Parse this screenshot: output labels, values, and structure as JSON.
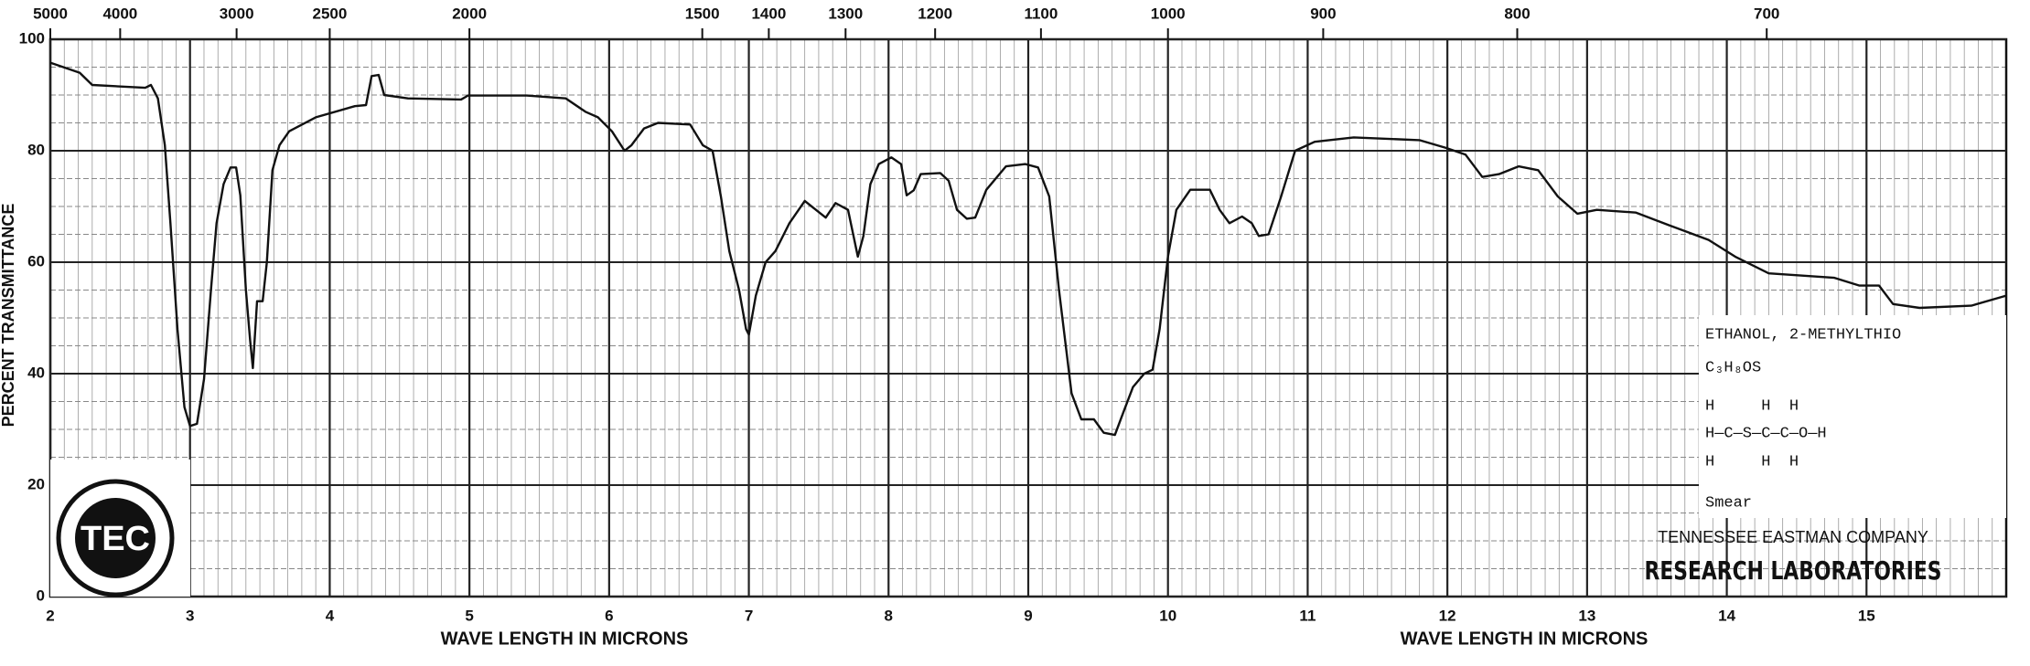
{
  "chart_data": {
    "type": "line",
    "ylabel": "PERCENT TRANSMITTANCE",
    "xlabel": "WAVE LENGTH IN MICRONS",
    "xlim": [
      2,
      16
    ],
    "xticks": [
      2,
      3,
      4,
      5,
      6,
      7,
      8,
      9,
      10,
      11,
      12,
      13,
      14,
      15
    ],
    "ylim": [
      0,
      100
    ],
    "yticks": [
      0,
      20,
      40,
      60,
      80,
      100
    ],
    "x2lim": [
      5000,
      625
    ],
    "x2scale": "reciprocal",
    "x2ticks": [
      5000,
      4000,
      3000,
      2500,
      2000,
      1500,
      1400,
      1300,
      1200,
      1100,
      1000,
      900,
      800,
      700
    ],
    "grid": true,
    "color": "#111111",
    "x": [
      2.0,
      2.21,
      2.3,
      2.68,
      2.72,
      2.77,
      2.82,
      2.86,
      2.91,
      2.96,
      3.0,
      3.05,
      3.1,
      3.15,
      3.19,
      3.24,
      3.29,
      3.33,
      3.36,
      3.4,
      3.43,
      3.45,
      3.48,
      3.52,
      3.55,
      3.59,
      3.64,
      3.71,
      3.9,
      4.18,
      4.26,
      4.3,
      4.35,
      4.39,
      4.56,
      4.94,
      4.99,
      5.41,
      5.69,
      5.83,
      5.92,
      6.02,
      6.11,
      6.16,
      6.25,
      6.35,
      6.58,
      6.67,
      6.74,
      6.8,
      6.86,
      6.93,
      6.98,
      7.0,
      7.05,
      7.12,
      7.19,
      7.29,
      7.4,
      7.48,
      7.55,
      7.62,
      7.71,
      7.78,
      7.82,
      7.87,
      7.93,
      8.02,
      8.09,
      8.13,
      8.18,
      8.23,
      8.37,
      8.43,
      8.49,
      8.56,
      8.62,
      8.7,
      8.84,
      8.98,
      9.07,
      9.15,
      9.22,
      9.31,
      9.38,
      9.47,
      9.54,
      9.62,
      9.68,
      9.75,
      9.83,
      9.89,
      9.94,
      10.0,
      10.06,
      10.16,
      10.3,
      10.37,
      10.44,
      10.53,
      10.6,
      10.65,
      10.72,
      10.81,
      10.91,
      11.05,
      11.33,
      11.8,
      11.99,
      12.13,
      12.25,
      12.37,
      12.51,
      12.65,
      12.79,
      12.93,
      13.07,
      13.35,
      13.59,
      13.87,
      14.06,
      14.3,
      14.53,
      14.77,
      14.95,
      15.09,
      15.19,
      15.38,
      15.75,
      16.0
    ],
    "values": [
      95.8,
      94,
      91.8,
      91.3,
      91.8,
      89.4,
      81,
      67,
      48,
      34,
      30.6,
      31,
      39,
      55,
      67,
      74,
      77,
      77,
      72,
      55,
      46,
      41,
      53,
      53,
      60,
      76.5,
      81,
      83.5,
      86,
      88,
      88.2,
      93.4,
      93.6,
      90,
      89.4,
      89.2,
      89.9,
      89.9,
      89.4,
      87,
      86,
      83.5,
      80,
      81,
      84,
      85,
      84.7,
      81,
      80,
      71.8,
      62,
      55,
      48,
      47,
      54,
      60,
      62,
      67,
      71,
      69.4,
      68,
      70.6,
      69.4,
      61,
      64.7,
      74,
      77.6,
      78.8,
      77.6,
      72,
      72.9,
      75.8,
      76,
      74.6,
      69.4,
      67.8,
      68,
      73,
      77.2,
      77.6,
      77,
      71.8,
      55,
      36.5,
      31.8,
      31.8,
      29.4,
      29,
      33,
      37.6,
      40,
      40.7,
      48,
      61,
      69.4,
      73,
      73,
      69.4,
      67,
      68.2,
      67,
      64.7,
      65,
      71.8,
      80,
      81.6,
      82.4,
      81.9,
      80.5,
      79.3,
      75.3,
      75.8,
      77.2,
      76.5,
      71.8,
      68.7,
      69.4,
      68.9,
      66.6,
      64,
      61,
      58,
      57.6,
      57.2,
      55.8,
      55.8,
      52.5,
      51.8,
      52.2,
      54
    ],
    "annotations": {
      "compound": "ETHANOL, 2-METHYLTHIO",
      "formula": "C₃H₈OS",
      "structure_top": "H     H  H",
      "structure": "H—C—S—C—C—O—H",
      "structure_bottom": "H     H  H",
      "sample": "Smear",
      "company": "TENNESSEE EASTMAN COMPANY",
      "lab": "RESEARCH LABORATORIES",
      "logo": "TEC"
    }
  }
}
